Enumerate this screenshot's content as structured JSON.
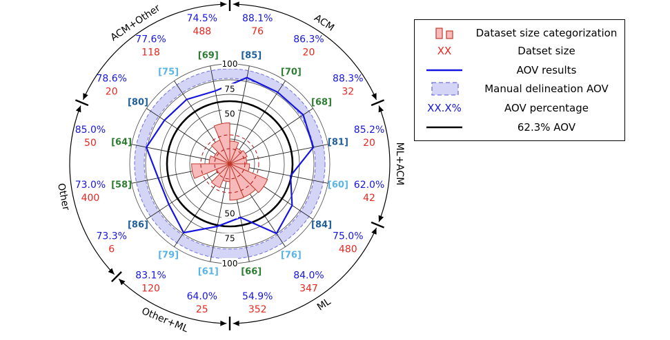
{
  "chart_data": {
    "type": "radar",
    "scale_ticks": [
      50,
      75,
      100
    ],
    "reference_line": {
      "value": 62.3,
      "label": "62.3% AOV"
    },
    "spokes": [
      {
        "ref": "[85]",
        "ref_color": "#1f5f99",
        "aov": 88.1,
        "size": 76
      },
      {
        "ref": "[70]",
        "ref_color": "#2e7d32",
        "aov": 86.3,
        "size": 20
      },
      {
        "ref": "[68]",
        "ref_color": "#2e7d32",
        "aov": 88.3,
        "size": 32
      },
      {
        "ref": "[81]",
        "ref_color": "#1f5f99",
        "aov": 85.2,
        "size": 20
      },
      {
        "ref": "[60]",
        "ref_color": "#5ab4e5",
        "aov": 62.0,
        "size": 42
      },
      {
        "ref": "[84]",
        "ref_color": "#1f5f99",
        "aov": 75.0,
        "size": 480
      },
      {
        "ref": "[76]",
        "ref_color": "#5ab4e5",
        "aov": 84.0,
        "size": 347
      },
      {
        "ref": "[66]",
        "ref_color": "#2e7d32",
        "aov": 54.9,
        "size": 352
      },
      {
        "ref": "[61]",
        "ref_color": "#5ab4e5",
        "aov": 64.0,
        "size": 25
      },
      {
        "ref": "[79]",
        "ref_color": "#5ab4e5",
        "aov": 83.1,
        "size": 120
      },
      {
        "ref": "[86]",
        "ref_color": "#1f5f99",
        "aov": 73.3,
        "size": 6
      },
      {
        "ref": "[58]",
        "ref_color": "#2e7d32",
        "aov": 73.0,
        "size": 400
      },
      {
        "ref": "[64]",
        "ref_color": "#2e7d32",
        "aov": 85.0,
        "size": 50
      },
      {
        "ref": "[80]",
        "ref_color": "#1f5f99",
        "aov": 78.6,
        "size": 20
      },
      {
        "ref": "[75]",
        "ref_color": "#5ab4e5",
        "aov": 77.6,
        "size": 118
      },
      {
        "ref": "[69]",
        "ref_color": "#2e7d32",
        "aov": 74.5,
        "size": 488
      }
    ],
    "groups": [
      {
        "label": "ACM",
        "start_spoke": 0,
        "end_spoke": 3
      },
      {
        "label": "ML+ACM",
        "start_spoke": 3,
        "end_spoke": 5
      },
      {
        "label": "ML",
        "start_spoke": 5,
        "end_spoke": 8
      },
      {
        "label": "Other+ML",
        "start_spoke": 8,
        "end_spoke": 10
      },
      {
        "label": "Other",
        "start_spoke": 10,
        "end_spoke": 13
      },
      {
        "label": "ACM+Other",
        "start_spoke": 13,
        "end_spoke": 16
      }
    ],
    "series": [
      {
        "name": "AOV results",
        "color": "#1515e0"
      },
      {
        "name": "Manual delineation AOV",
        "color": "#b8b8ee"
      }
    ]
  },
  "legend": [
    {
      "kind": "size-bars",
      "label": "Dataset size categorization"
    },
    {
      "kind": "text-red",
      "symbol": "XX",
      "label": "Datset size"
    },
    {
      "kind": "line-blue",
      "label": "AOV results"
    },
    {
      "kind": "band",
      "label": "Manual delineation AOV"
    },
    {
      "kind": "text-blue",
      "symbol": "XX.X%",
      "label": "AOV percentage"
    },
    {
      "kind": "line-black",
      "label": "62.3% AOV"
    }
  ],
  "colors": {
    "aov": "#1515e0",
    "size": "#e8251f",
    "band_fill": "#d4d4f6",
    "band_edge": "#6d6de0",
    "petal_fill": "#f7b9b9",
    "petal_edge": "#c0392b"
  }
}
